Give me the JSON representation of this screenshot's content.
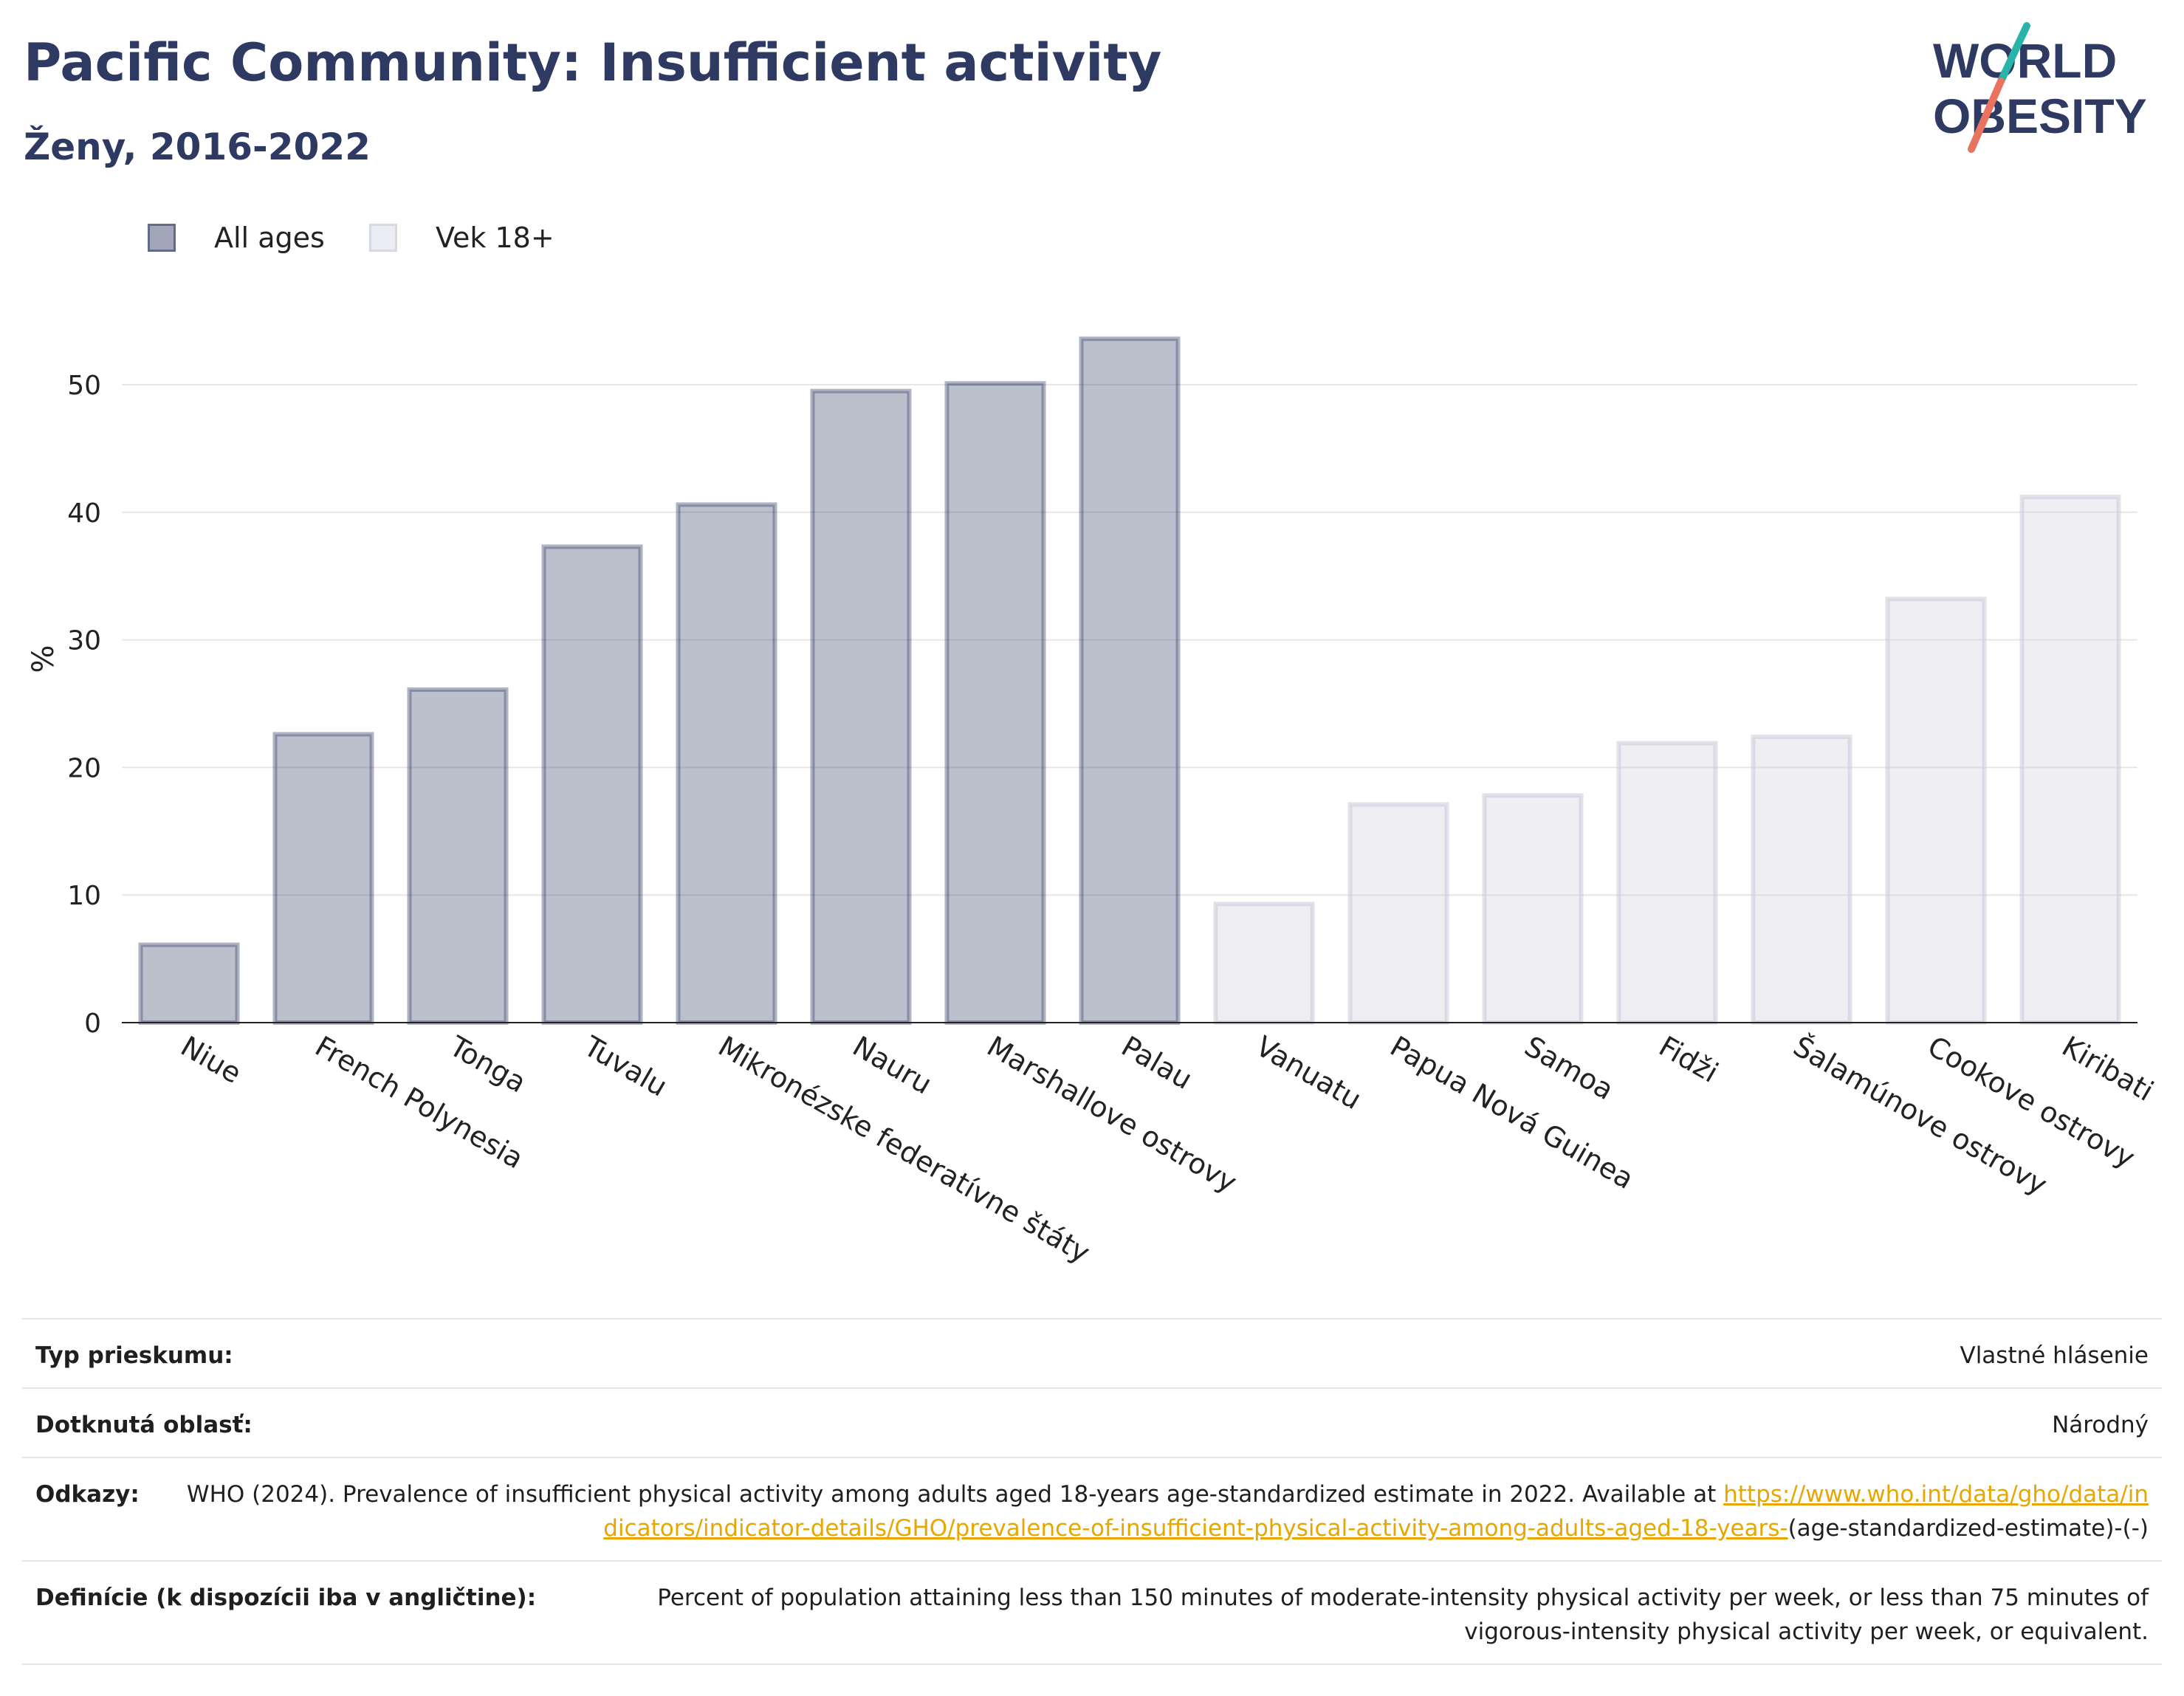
{
  "header": {
    "title": "Pacific Community: Insufficient activity",
    "subtitle": "Ženy, 2016-2022"
  },
  "logo": {
    "line1": "WORLD",
    "line2": "OBESITY",
    "colors": {
      "text": "#2f3a63",
      "slash_top": "#2ab3a8",
      "slash_bottom": "#e8735f"
    }
  },
  "legend": [
    {
      "label": "All ages",
      "color": "#2f3a63"
    },
    {
      "label": "Vek 18+",
      "color": "#c9cbd9"
    }
  ],
  "chart_data": {
    "type": "bar",
    "ylabel": "%",
    "ylim": [
      0,
      57
    ],
    "yticks": [
      0,
      10,
      20,
      30,
      40,
      50
    ],
    "grid": true,
    "legend_position": "top-left",
    "categories": [
      "Niue",
      "French Polynesia",
      "Tonga",
      "Tuvalu",
      "Mikronézske federatívne štáty",
      "Nauru",
      "Marshallove ostrovy",
      "Palau",
      "Vanuatu",
      "Papua Nová Guinea",
      "Samoa",
      "Fidži",
      "Šalamúnove ostrovy",
      "Cookove ostrovy",
      "Kiribati"
    ],
    "series": [
      {
        "name": "All ages",
        "values": [
          6.1,
          22.6,
          26.1,
          37.3,
          40.6,
          49.5,
          50.1,
          53.6,
          null,
          null,
          null,
          null,
          null,
          null,
          null
        ]
      },
      {
        "name": "Vek 18+",
        "values": [
          null,
          null,
          null,
          null,
          null,
          null,
          null,
          null,
          9.3,
          17.1,
          17.8,
          21.9,
          22.4,
          33.2,
          41.2
        ]
      }
    ]
  },
  "info": {
    "survey_type": {
      "label": "Typ prieskumu:",
      "value": "Vlastné hlásenie"
    },
    "coverage": {
      "label": "Dotknutá oblasť:",
      "value": "Národný"
    },
    "references": {
      "label": "Odkazy:",
      "text_before": "WHO (2024). Prevalence of insufficient physical activity among adults aged 18-years age-standardized estimate in 2022. Available at ",
      "link": "https://www.who.int/data/gho/data/indicators/indicator-details/GHO/prevalence-of-insufficient-physical-activity-among-adults-aged-18-years-",
      "text_after": "(age-standardized-estimate)-(-)"
    },
    "definitions": {
      "label": "Definície (k dispozícii iba v angličtine):",
      "value": "Percent of population attaining less than 150 minutes of moderate-intensity physical activity per week, or less than 75 minutes of vigorous-intensity physical activity per week, or equivalent."
    }
  }
}
